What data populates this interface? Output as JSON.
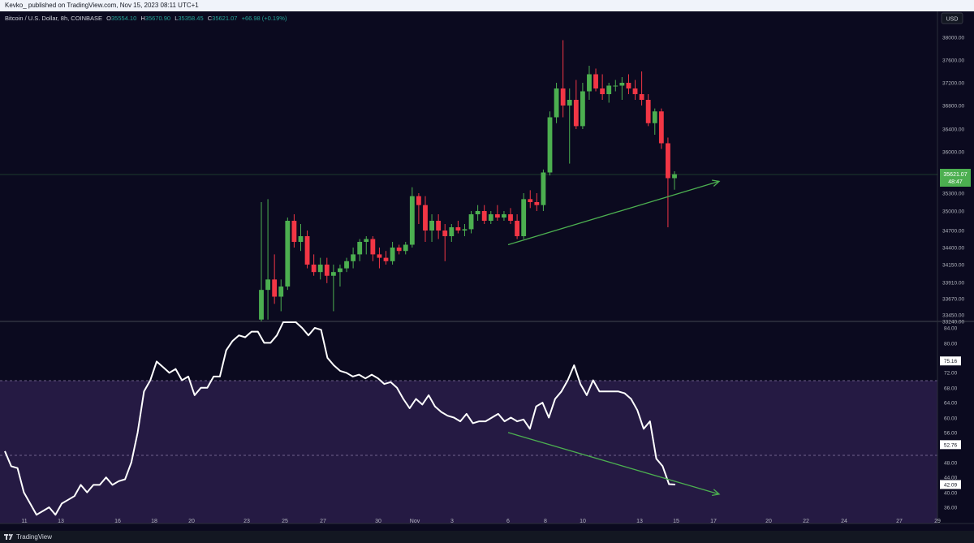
{
  "header": {
    "publish_line": "Kevko_ published on TradingView.com, Nov 15, 2023 08:11 UTC+1"
  },
  "legend": {
    "symbol": "Bitcoin / U.S. Dollar, 8h, COINBASE",
    "o_label": "O",
    "o_value": "35554.10",
    "h_label": "H",
    "h_value": "35670.90",
    "l_label": "L",
    "l_value": "35358.45",
    "c_label": "C",
    "c_value": "35621.07",
    "change": "+66.98 (+0.19%)"
  },
  "currency_badge": "USD",
  "price_axis": {
    "ticks": [
      "38000.00",
      "37600.00",
      "37200.00",
      "36800.00",
      "36400.00",
      "36000.00",
      "35300.00",
      "35000.00",
      "34700.00",
      "34400.00",
      "34150.00",
      "33910.00",
      "33670.00",
      "33450.00",
      "33240.00"
    ],
    "last_price_label": "35621.07",
    "countdown_label": "48:47"
  },
  "rsi_axis": {
    "ticks": [
      "84.00",
      "80.00",
      "72.00",
      "68.00",
      "64.00",
      "60.00",
      "56.00",
      "48.00",
      "44.00",
      "40.00",
      "36.00"
    ],
    "badges": [
      "75.16",
      "52.76",
      "42.09"
    ]
  },
  "time_axis": {
    "labels": [
      "11",
      "13",
      "16",
      "18",
      "20",
      "23",
      "25",
      "27",
      "30",
      "Nov",
      "3",
      "6",
      "8",
      "10",
      "13",
      "15",
      "17",
      "20",
      "22",
      "24",
      "27",
      "29"
    ]
  },
  "colors": {
    "up": "#26a69a",
    "up_bright": "#4caf50",
    "down": "#f23645",
    "arrow": "#4caf50",
    "rsi_line": "#ffffff",
    "rsi_band": "#2a1d4a",
    "background": "#0b0a1f"
  },
  "chart_data": {
    "type": "candlestick",
    "interval": "8h",
    "price_range": [
      33240,
      38000
    ],
    "candles": [
      {
        "o": 33300,
        "h": 35150,
        "l": 33240,
        "c": 33800
      },
      {
        "o": 33800,
        "h": 35200,
        "l": 33300,
        "c": 33950
      },
      {
        "o": 33950,
        "h": 34300,
        "l": 33600,
        "c": 33700
      },
      {
        "o": 33700,
        "h": 33950,
        "l": 33500,
        "c": 33850
      },
      {
        "o": 33850,
        "h": 34900,
        "l": 33800,
        "c": 34850
      },
      {
        "o": 34850,
        "h": 34950,
        "l": 34400,
        "c": 34500
      },
      {
        "o": 34500,
        "h": 34800,
        "l": 34350,
        "c": 34600
      },
      {
        "o": 34600,
        "h": 34700,
        "l": 34100,
        "c": 34150
      },
      {
        "o": 34150,
        "h": 34300,
        "l": 34000,
        "c": 34050
      },
      {
        "o": 34050,
        "h": 34250,
        "l": 33950,
        "c": 34150
      },
      {
        "o": 34150,
        "h": 34250,
        "l": 33900,
        "c": 34000
      },
      {
        "o": 34000,
        "h": 34150,
        "l": 33500,
        "c": 34050
      },
      {
        "o": 34050,
        "h": 34150,
        "l": 33850,
        "c": 34100
      },
      {
        "o": 34100,
        "h": 34250,
        "l": 34050,
        "c": 34200
      },
      {
        "o": 34200,
        "h": 34400,
        "l": 34100,
        "c": 34300
      },
      {
        "o": 34300,
        "h": 34550,
        "l": 34200,
        "c": 34500
      },
      {
        "o": 34500,
        "h": 34600,
        "l": 34300,
        "c": 34550
      },
      {
        "o": 34550,
        "h": 34600,
        "l": 34200,
        "c": 34300
      },
      {
        "o": 34300,
        "h": 34400,
        "l": 34100,
        "c": 34250
      },
      {
        "o": 34250,
        "h": 34350,
        "l": 34150,
        "c": 34200
      },
      {
        "o": 34200,
        "h": 34500,
        "l": 34150,
        "c": 34400
      },
      {
        "o": 34400,
        "h": 34450,
        "l": 34300,
        "c": 34350
      },
      {
        "o": 34350,
        "h": 34500,
        "l": 34300,
        "c": 34450
      },
      {
        "o": 34450,
        "h": 35400,
        "l": 34400,
        "c": 35250
      },
      {
        "o": 35250,
        "h": 35300,
        "l": 34800,
        "c": 35100
      },
      {
        "o": 35100,
        "h": 35250,
        "l": 34500,
        "c": 34700
      },
      {
        "o": 34700,
        "h": 34950,
        "l": 34500,
        "c": 34850
      },
      {
        "o": 34850,
        "h": 34950,
        "l": 34550,
        "c": 34700
      },
      {
        "o": 34700,
        "h": 34800,
        "l": 34200,
        "c": 34600
      },
      {
        "o": 34600,
        "h": 34800,
        "l": 34500,
        "c": 34750
      },
      {
        "o": 34750,
        "h": 34850,
        "l": 34650,
        "c": 34700
      },
      {
        "o": 34700,
        "h": 34800,
        "l": 34600,
        "c": 34720
      },
      {
        "o": 34720,
        "h": 35000,
        "l": 34650,
        "c": 34950
      },
      {
        "o": 34950,
        "h": 35100,
        "l": 34850,
        "c": 35000
      },
      {
        "o": 35000,
        "h": 35100,
        "l": 34800,
        "c": 34850
      },
      {
        "o": 34850,
        "h": 35000,
        "l": 34800,
        "c": 34950
      },
      {
        "o": 34950,
        "h": 35100,
        "l": 34850,
        "c": 34900
      },
      {
        "o": 34900,
        "h": 35000,
        "l": 34850,
        "c": 34950
      },
      {
        "o": 34950,
        "h": 35050,
        "l": 34800,
        "c": 34850
      },
      {
        "o": 34850,
        "h": 34950,
        "l": 34550,
        "c": 34600
      },
      {
        "o": 34600,
        "h": 35300,
        "l": 34550,
        "c": 35200
      },
      {
        "o": 35200,
        "h": 35350,
        "l": 35050,
        "c": 35150
      },
      {
        "o": 35150,
        "h": 35300,
        "l": 35000,
        "c": 35100
      },
      {
        "o": 35100,
        "h": 35700,
        "l": 35000,
        "c": 35650
      },
      {
        "o": 35650,
        "h": 36700,
        "l": 35600,
        "c": 36600
      },
      {
        "o": 36600,
        "h": 37200,
        "l": 36500,
        "c": 37100
      },
      {
        "o": 37100,
        "h": 37950,
        "l": 36600,
        "c": 36800
      },
      {
        "o": 36800,
        "h": 37100,
        "l": 35800,
        "c": 36900
      },
      {
        "o": 36900,
        "h": 37250,
        "l": 36400,
        "c": 36450
      },
      {
        "o": 36450,
        "h": 37200,
        "l": 36400,
        "c": 37050
      },
      {
        "o": 37050,
        "h": 37500,
        "l": 36900,
        "c": 37350
      },
      {
        "o": 37350,
        "h": 37450,
        "l": 37050,
        "c": 37100
      },
      {
        "o": 37100,
        "h": 37350,
        "l": 36900,
        "c": 37000
      },
      {
        "o": 37000,
        "h": 37200,
        "l": 36850,
        "c": 37150
      },
      {
        "o": 37150,
        "h": 37250,
        "l": 37050,
        "c": 37150
      },
      {
        "o": 37150,
        "h": 37300,
        "l": 36900,
        "c": 37200
      },
      {
        "o": 37200,
        "h": 37350,
        "l": 37000,
        "c": 37100
      },
      {
        "o": 37100,
        "h": 37250,
        "l": 36900,
        "c": 37000
      },
      {
        "o": 37000,
        "h": 37400,
        "l": 36800,
        "c": 36900
      },
      {
        "o": 36900,
        "h": 37000,
        "l": 36450,
        "c": 36500
      },
      {
        "o": 36500,
        "h": 36750,
        "l": 36300,
        "c": 36700
      },
      {
        "o": 36700,
        "h": 36750,
        "l": 36050,
        "c": 36150
      },
      {
        "o": 36150,
        "h": 36250,
        "l": 34750,
        "c": 35554
      },
      {
        "o": 35554,
        "h": 35670,
        "l": 35358,
        "c": 35621
      }
    ],
    "rsi": {
      "range": [
        36,
        86
      ],
      "values": [
        51,
        47,
        46.5,
        40,
        37,
        34,
        35,
        36,
        34,
        37,
        38,
        39,
        42,
        40,
        42,
        42,
        44,
        42,
        43,
        43.5,
        48,
        56,
        67,
        70,
        75,
        73.5,
        72,
        73,
        70,
        71,
        66,
        68,
        68,
        71,
        71,
        78,
        80.5,
        82,
        81.5,
        83,
        83,
        80,
        80,
        82,
        86,
        87,
        86,
        84,
        82,
        84,
        83.5,
        76,
        74,
        72.5,
        72,
        71,
        71.5,
        70.5,
        71.5,
        70.5,
        69,
        69.5,
        68,
        65,
        62.5,
        65,
        63.5,
        66,
        63,
        61.5,
        60.5,
        60,
        59,
        61,
        58.5,
        59,
        59,
        60,
        61,
        59,
        60,
        59,
        59.5,
        57,
        63,
        64,
        60,
        65,
        67,
        70,
        74,
        69,
        66,
        70,
        67,
        67,
        67,
        67,
        66.5,
        65,
        62,
        57,
        59,
        49,
        47,
        42.2,
        42.09
      ]
    },
    "annotations": [
      {
        "type": "trend-arrow",
        "pane": "price",
        "from": {
          "date": "Nov 6",
          "price": 34450
        },
        "to": {
          "date": "Nov 17",
          "price": 35500
        }
      },
      {
        "type": "trend-arrow",
        "pane": "rsi",
        "from": {
          "date": "Nov 6",
          "rsi": 56
        },
        "to": {
          "date": "Nov 17",
          "rsi": 39.5
        }
      }
    ]
  }
}
